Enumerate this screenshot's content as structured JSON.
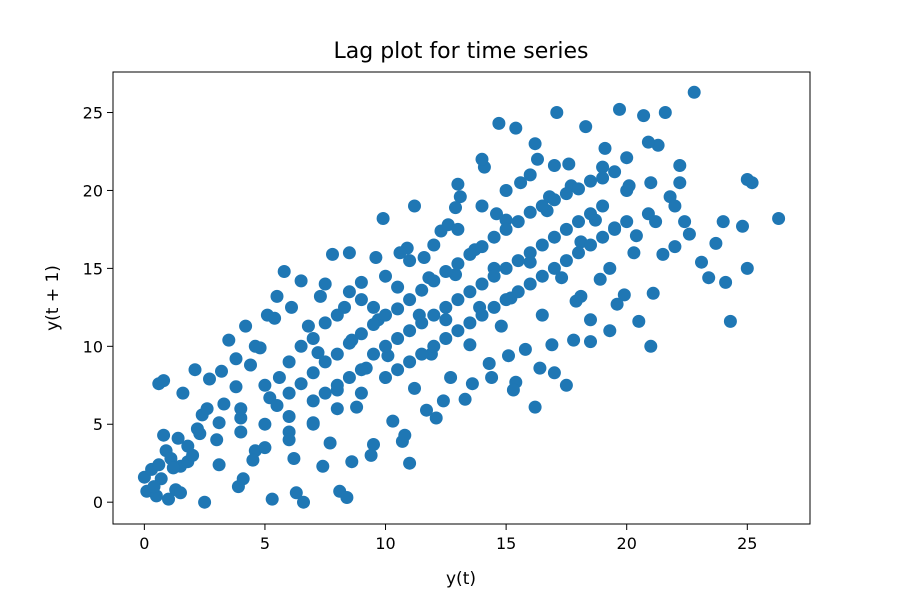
{
  "chart_data": {
    "type": "scatter",
    "title": "Lag plot for time series",
    "xlabel": "y(t)",
    "ylabel": "y(t + 1)",
    "xlim": [
      -1.3,
      27.6
    ],
    "ylim": [
      -1.4,
      27.6
    ],
    "xticks": [
      0,
      5,
      10,
      15,
      20,
      25
    ],
    "yticks": [
      0,
      5,
      10,
      15,
      20,
      25
    ],
    "grid": false,
    "legend": "none",
    "marker_color": "#1f77b4",
    "series": [
      {
        "points": [
          [
            0.0,
            1.6
          ],
          [
            0.1,
            0.7
          ],
          [
            0.3,
            2.1
          ],
          [
            0.5,
            0.4
          ],
          [
            0.6,
            2.4
          ],
          [
            0.7,
            1.5
          ],
          [
            0.6,
            7.6
          ],
          [
            0.8,
            7.8
          ],
          [
            0.8,
            4.3
          ],
          [
            0.9,
            3.3
          ],
          [
            1.1,
            2.8
          ],
          [
            1.3,
            0.8
          ],
          [
            1.4,
            4.1
          ],
          [
            1.5,
            0.6
          ],
          [
            1.5,
            2.3
          ],
          [
            1.8,
            2.6
          ],
          [
            2.0,
            3.0
          ],
          [
            2.3,
            4.4
          ],
          [
            2.5,
            0.0
          ],
          [
            2.1,
            8.5
          ],
          [
            1.6,
            7.0
          ],
          [
            2.4,
            5.6
          ],
          [
            2.7,
            7.9
          ],
          [
            3.1,
            5.1
          ],
          [
            3.3,
            6.3
          ],
          [
            3.5,
            10.4
          ],
          [
            3.8,
            7.4
          ],
          [
            3.9,
            1.0
          ],
          [
            4.0,
            5.4
          ],
          [
            4.2,
            11.3
          ],
          [
            4.4,
            8.8
          ],
          [
            4.6,
            3.3
          ],
          [
            4.8,
            9.9
          ],
          [
            5.1,
            12.0
          ],
          [
            5.2,
            6.7
          ],
          [
            5.3,
            0.2
          ],
          [
            5.5,
            13.2
          ],
          [
            5.6,
            8.0
          ],
          [
            5.8,
            14.8
          ],
          [
            6.0,
            4.5
          ],
          [
            6.3,
            0.6
          ],
          [
            6.5,
            14.2
          ],
          [
            6.6,
            0.0
          ],
          [
            6.8,
            11.3
          ],
          [
            7.0,
            5.1
          ],
          [
            7.2,
            9.6
          ],
          [
            7.5,
            14.0
          ],
          [
            7.7,
            3.8
          ],
          [
            7.8,
            15.9
          ],
          [
            8.0,
            7.2
          ],
          [
            8.1,
            0.7
          ],
          [
            8.4,
            0.3
          ],
          [
            8.3,
            12.5
          ],
          [
            8.6,
            10.4
          ],
          [
            8.8,
            6.1
          ],
          [
            9.0,
            14.1
          ],
          [
            9.2,
            8.6
          ],
          [
            9.4,
            3.0
          ],
          [
            9.7,
            11.7
          ],
          [
            9.9,
            18.2
          ],
          [
            10.1,
            9.4
          ],
          [
            10.3,
            5.2
          ],
          [
            10.5,
            13.8
          ],
          [
            10.7,
            3.9
          ],
          [
            10.9,
            16.3
          ],
          [
            11.0,
            2.5
          ],
          [
            11.2,
            7.3
          ],
          [
            11.4,
            12.0
          ],
          [
            11.6,
            15.7
          ],
          [
            11.9,
            9.5
          ],
          [
            12.1,
            5.4
          ],
          [
            12.3,
            17.4
          ],
          [
            12.5,
            11.7
          ],
          [
            12.7,
            8.0
          ],
          [
            12.9,
            14.6
          ],
          [
            13.1,
            19.6
          ],
          [
            13.3,
            6.6
          ],
          [
            13.5,
            10.1
          ],
          [
            13.7,
            16.2
          ],
          [
            13.9,
            12.5
          ],
          [
            14.1,
            21.5
          ],
          [
            14.3,
            8.9
          ],
          [
            14.5,
            15.0
          ],
          [
            14.7,
            24.3
          ],
          [
            14.8,
            11.3
          ],
          [
            15.0,
            18.1
          ],
          [
            15.2,
            13.1
          ],
          [
            15.4,
            7.7
          ],
          [
            15.6,
            20.5
          ],
          [
            15.8,
            9.8
          ],
          [
            16.0,
            15.4
          ],
          [
            16.2,
            6.1
          ],
          [
            16.3,
            22.0
          ],
          [
            16.5,
            12.0
          ],
          [
            16.7,
            18.7
          ],
          [
            16.9,
            10.1
          ],
          [
            17.1,
            25.0
          ],
          [
            17.3,
            14.4
          ],
          [
            17.5,
            7.5
          ],
          [
            17.7,
            20.3
          ],
          [
            17.9,
            12.9
          ],
          [
            18.1,
            16.7
          ],
          [
            18.3,
            24.1
          ],
          [
            18.5,
            10.3
          ],
          [
            18.7,
            18.1
          ],
          [
            18.9,
            14.3
          ],
          [
            19.1,
            22.7
          ],
          [
            19.3,
            11.0
          ],
          [
            19.5,
            17.6
          ],
          [
            19.7,
            25.2
          ],
          [
            19.9,
            13.3
          ],
          [
            20.1,
            20.3
          ],
          [
            20.3,
            16.0
          ],
          [
            20.5,
            11.6
          ],
          [
            20.7,
            24.8
          ],
          [
            20.9,
            18.5
          ],
          [
            21.1,
            13.4
          ],
          [
            21.3,
            22.9
          ],
          [
            21.5,
            15.9
          ],
          [
            21.6,
            25.0
          ],
          [
            21.8,
            19.6
          ],
          [
            22.0,
            16.4
          ],
          [
            22.2,
            21.6
          ],
          [
            22.4,
            18.0
          ],
          [
            22.6,
            17.2
          ],
          [
            22.8,
            26.3
          ],
          [
            23.1,
            15.4
          ],
          [
            23.4,
            14.4
          ],
          [
            23.7,
            16.6
          ],
          [
            24.0,
            18.0
          ],
          [
            24.1,
            14.1
          ],
          [
            24.3,
            11.6
          ],
          [
            24.8,
            17.7
          ],
          [
            25.0,
            15.0
          ],
          [
            25.0,
            20.7
          ],
          [
            25.2,
            20.5
          ],
          [
            26.3,
            18.2
          ],
          [
            21.0,
            10.0
          ],
          [
            19.6,
            12.7
          ],
          [
            18.5,
            11.7
          ],
          [
            17.0,
            8.3
          ],
          [
            15.3,
            7.2
          ],
          [
            16.8,
            19.6
          ],
          [
            15.4,
            24.0
          ],
          [
            20.9,
            23.1
          ],
          [
            19.0,
            21.5
          ],
          [
            22.0,
            19.0
          ],
          [
            14.6,
            18.5
          ],
          [
            13.0,
            20.4
          ],
          [
            12.6,
            17.8
          ],
          [
            11.8,
            14.4
          ],
          [
            10.6,
            16.0
          ],
          [
            9.6,
            15.7
          ],
          [
            8.5,
            16.0
          ],
          [
            7.3,
            13.2
          ],
          [
            6.1,
            12.5
          ],
          [
            5.4,
            11.8
          ],
          [
            4.6,
            10.0
          ],
          [
            3.8,
            9.2
          ],
          [
            3.2,
            8.4
          ],
          [
            2.6,
            6.0
          ],
          [
            2.2,
            4.7
          ],
          [
            1.8,
            3.6
          ],
          [
            1.2,
            2.2
          ],
          [
            0.4,
            1.0
          ],
          [
            1.0,
            0.2
          ],
          [
            3.1,
            2.4
          ],
          [
            4.1,
            1.5
          ],
          [
            4.5,
            2.7
          ],
          [
            6.2,
            2.8
          ],
          [
            7.4,
            2.3
          ],
          [
            8.6,
            2.6
          ],
          [
            9.5,
            3.7
          ],
          [
            10.8,
            4.3
          ],
          [
            11.7,
            5.9
          ],
          [
            12.4,
            6.5
          ],
          [
            13.6,
            7.6
          ],
          [
            14.4,
            8.0
          ],
          [
            15.1,
            9.4
          ],
          [
            16.4,
            8.6
          ],
          [
            17.8,
            10.4
          ],
          [
            18.1,
            13.2
          ],
          [
            19.3,
            15.0
          ],
          [
            20.4,
            17.1
          ],
          [
            21.2,
            18.0
          ],
          [
            22.2,
            20.5
          ],
          [
            20.0,
            22.1
          ],
          [
            17.6,
            21.7
          ],
          [
            16.2,
            23.0
          ],
          [
            14.0,
            22.0
          ],
          [
            12.9,
            18.9
          ],
          [
            11.2,
            19.0
          ],
          [
            5.0,
            5.0
          ],
          [
            5.5,
            6.2
          ],
          [
            6.0,
            7.0
          ],
          [
            6.5,
            7.6
          ],
          [
            7.0,
            8.3
          ],
          [
            7.5,
            9.0
          ],
          [
            8.0,
            9.5
          ],
          [
            8.5,
            10.2
          ],
          [
            9.0,
            10.8
          ],
          [
            9.5,
            11.4
          ],
          [
            10.0,
            12.0
          ],
          [
            10.5,
            12.4
          ],
          [
            11.0,
            13.0
          ],
          [
            11.5,
            13.6
          ],
          [
            12.0,
            14.2
          ],
          [
            12.5,
            14.8
          ],
          [
            13.0,
            15.3
          ],
          [
            13.5,
            15.9
          ],
          [
            14.0,
            16.4
          ],
          [
            14.5,
            17.0
          ],
          [
            15.0,
            17.5
          ],
          [
            15.5,
            18.0
          ],
          [
            16.0,
            18.6
          ],
          [
            16.5,
            19.0
          ],
          [
            17.0,
            19.4
          ],
          [
            17.5,
            19.8
          ],
          [
            18.0,
            20.1
          ],
          [
            18.5,
            20.6
          ],
          [
            19.0,
            20.8
          ],
          [
            19.5,
            21.2
          ],
          [
            6.0,
            4.0
          ],
          [
            7.0,
            5.0
          ],
          [
            8.0,
            6.0
          ],
          [
            9.0,
            7.0
          ],
          [
            10.0,
            8.0
          ],
          [
            11.0,
            9.0
          ],
          [
            12.0,
            10.0
          ],
          [
            13.0,
            11.0
          ],
          [
            14.0,
            12.0
          ],
          [
            15.0,
            13.0
          ],
          [
            16.0,
            14.0
          ],
          [
            17.0,
            15.0
          ],
          [
            18.0,
            16.0
          ],
          [
            19.0,
            17.0
          ],
          [
            20.0,
            18.0
          ],
          [
            4.0,
            6.0
          ],
          [
            5.0,
            7.5
          ],
          [
            6.0,
            9.0
          ],
          [
            7.0,
            10.5
          ],
          [
            8.0,
            12.0
          ],
          [
            9.0,
            13.0
          ],
          [
            10.0,
            14.5
          ],
          [
            11.0,
            15.5
          ],
          [
            12.0,
            16.5
          ],
          [
            13.0,
            17.5
          ],
          [
            14.0,
            19.0
          ],
          [
            15.0,
            20.0
          ],
          [
            16.0,
            21.0
          ],
          [
            17.0,
            21.6
          ],
          [
            3.0,
            4.0
          ],
          [
            4.0,
            4.5
          ],
          [
            5.0,
            3.5
          ],
          [
            6.0,
            5.5
          ],
          [
            7.0,
            6.5
          ],
          [
            8.0,
            7.5
          ],
          [
            9.0,
            8.5
          ],
          [
            10.0,
            10.0
          ],
          [
            11.0,
            11.0
          ],
          [
            12.0,
            12.0
          ],
          [
            13.0,
            13.0
          ],
          [
            14.0,
            14.0
          ],
          [
            15.0,
            15.0
          ],
          [
            16.0,
            16.0
          ],
          [
            17.0,
            17.0
          ],
          [
            18.0,
            18.0
          ],
          [
            19.0,
            19.0
          ],
          [
            20.0,
            20.0
          ],
          [
            21.0,
            20.5
          ],
          [
            7.5,
            11.5
          ],
          [
            8.5,
            13.5
          ],
          [
            9.5,
            9.5
          ],
          [
            10.5,
            10.5
          ],
          [
            11.5,
            11.5
          ],
          [
            12.5,
            12.5
          ],
          [
            13.5,
            13.5
          ],
          [
            14.5,
            14.5
          ],
          [
            15.5,
            15.5
          ],
          [
            16.5,
            16.5
          ],
          [
            17.5,
            17.5
          ],
          [
            18.5,
            18.5
          ],
          [
            6.5,
            10.0
          ],
          [
            7.5,
            7.0
          ],
          [
            8.5,
            8.0
          ],
          [
            9.5,
            12.5
          ],
          [
            10.5,
            8.5
          ],
          [
            11.5,
            9.5
          ],
          [
            12.5,
            10.5
          ],
          [
            13.5,
            11.5
          ],
          [
            14.5,
            12.5
          ],
          [
            15.5,
            13.5
          ],
          [
            16.5,
            14.5
          ],
          [
            17.5,
            15.5
          ],
          [
            18.5,
            16.5
          ],
          [
            19.5,
            17.5
          ]
        ]
      }
    ]
  }
}
